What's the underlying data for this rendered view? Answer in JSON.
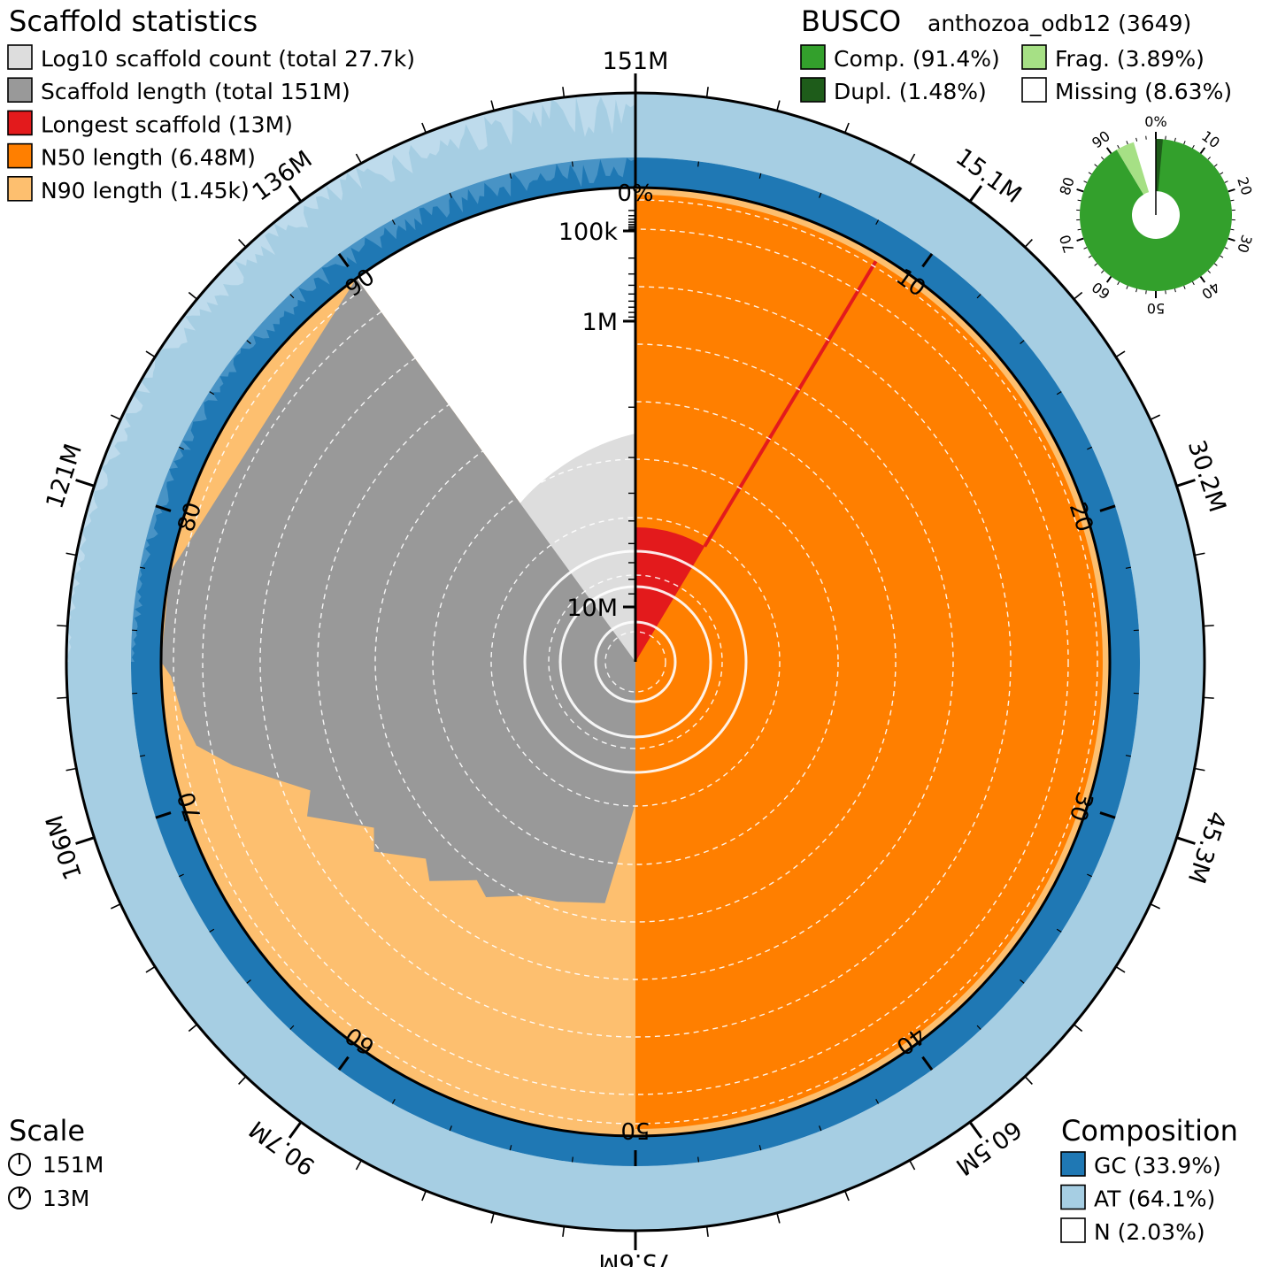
{
  "chart_data": {
    "type": "snail",
    "scaffold_stats": {
      "title": "Scaffold statistics",
      "legend": [
        {
          "key": "count",
          "label": "Log10 scaffold count (total 27.7k)",
          "color": "#dddddd"
        },
        {
          "key": "length",
          "label": "Scaffold length (total 151M)",
          "color": "#999999"
        },
        {
          "key": "longest",
          "label": "Longest scaffold (13M)",
          "color": "#e31a1c"
        },
        {
          "key": "n50",
          "label": "N50 length (6.48M)",
          "color": "#ff7f00"
        },
        {
          "key": "n90",
          "label": "N90 length (1.45k)",
          "color": "#fdbf6f"
        }
      ],
      "total_length_bp": 151000000,
      "scaffold_count": 27700,
      "longest_bp": 13000000,
      "n50_bp": 6480000,
      "n90_bp": 1450,
      "longest_pct": 8.6,
      "n50_pct": 50,
      "n90_pct": 90
    },
    "outer_ticks": [
      {
        "label": "151M",
        "pct": 0
      },
      {
        "label": "15.1M",
        "pct": 10
      },
      {
        "label": "30.2M",
        "pct": 20
      },
      {
        "label": "45.3M",
        "pct": 30
      },
      {
        "label": "60.5M",
        "pct": 40
      },
      {
        "label": "75.6M",
        "pct": 50
      },
      {
        "label": "90.7M",
        "pct": 60
      },
      {
        "label": "106M",
        "pct": 70
      },
      {
        "label": "121M",
        "pct": 80
      },
      {
        "label": "136M",
        "pct": 90
      }
    ],
    "pct_ticks": [
      {
        "label": "0%",
        "pct": 0
      },
      {
        "label": "10",
        "pct": 10
      },
      {
        "label": "20",
        "pct": 20
      },
      {
        "label": "30",
        "pct": 30
      },
      {
        "label": "40",
        "pct": 40
      },
      {
        "label": "50",
        "pct": 50
      },
      {
        "label": "60",
        "pct": 60
      },
      {
        "label": "70",
        "pct": 70
      },
      {
        "label": "80",
        "pct": 80
      },
      {
        "label": "90",
        "pct": 90
      }
    ],
    "radial_axis": {
      "labels": [
        {
          "label": "100k",
          "value_bp": 100000
        },
        {
          "label": "1M",
          "value_bp": 1000000
        },
        {
          "label": "10M",
          "value_bp": 10000000
        }
      ]
    },
    "busco": {
      "title": "BUSCO",
      "lineage": "anthozoa_odb12 (3649)",
      "legend": [
        {
          "key": "complete",
          "label": "Comp. (91.4%)",
          "color": "#33a02c"
        },
        {
          "key": "fragmented",
          "label": "Frag. (3.89%)",
          "color": "#a6e085"
        },
        {
          "key": "duplicated",
          "label": "Dupl. (1.48%)",
          "color": "#1e5c1a"
        },
        {
          "key": "missing",
          "label": "Missing (8.63%)",
          "color": "#ffffff"
        }
      ],
      "complete_pct": 91.4,
      "duplicated_pct": 1.48,
      "fragmented_pct": 3.89,
      "missing_pct": 8.63,
      "ticks": [
        "0%",
        "10",
        "20",
        "30",
        "40",
        "50",
        "60",
        "70",
        "80",
        "90"
      ]
    },
    "scale": {
      "title": "Scale",
      "items": [
        {
          "label": "151M",
          "fraction": 1.0
        },
        {
          "label": "13M",
          "fraction": 0.086
        }
      ]
    },
    "composition": {
      "title": "Composition",
      "legend": [
        {
          "key": "gc",
          "label": "GC (33.9%)",
          "color": "#1f78b4"
        },
        {
          "key": "at",
          "label": "AT (64.1%)",
          "color": "#a6cee3"
        },
        {
          "key": "n",
          "label": "N (2.03%)",
          "color": "#ffffff"
        }
      ],
      "gc_pct": 33.9,
      "at_pct": 64.1,
      "n_pct": 2.03
    }
  }
}
